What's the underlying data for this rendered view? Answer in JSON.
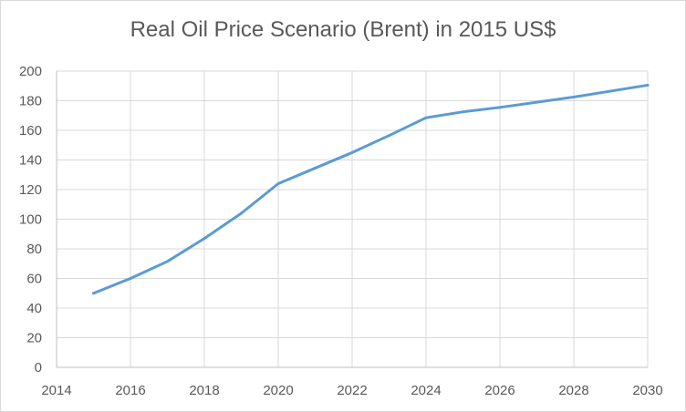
{
  "chart_data": {
    "type": "line",
    "title": "Real Oil Price Scenario (Brent) in 2015 US$",
    "xlabel": "",
    "ylabel": "",
    "xlim": [
      2014,
      2030
    ],
    "ylim": [
      0,
      200
    ],
    "x_ticks": [
      2014,
      2016,
      2018,
      2020,
      2022,
      2024,
      2026,
      2028,
      2030
    ],
    "y_ticks": [
      0,
      20,
      40,
      60,
      80,
      100,
      120,
      140,
      160,
      180,
      200
    ],
    "grid": "horizontal",
    "legend": "none",
    "series": [
      {
        "color": "#5b9bd5",
        "x": [
          2015,
          2016,
          2017,
          2018,
          2019,
          2020,
          2021,
          2022,
          2023,
          2024,
          2025,
          2026,
          2027,
          2028,
          2029,
          2030
        ],
        "values": [
          50,
          60,
          71.5,
          87,
          104,
          124,
          134.5,
          145,
          156.5,
          168.5,
          172.5,
          175.5,
          179,
          182.5,
          186.5,
          190.5
        ]
      }
    ]
  }
}
